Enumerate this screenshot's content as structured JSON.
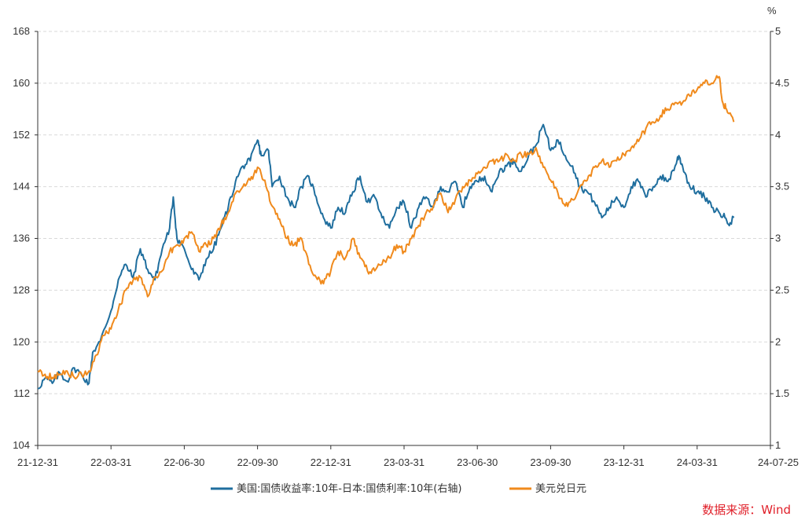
{
  "chart_data": {
    "type": "line",
    "unit_right": "%",
    "x_ticks": [
      "21-12-31",
      "22-03-31",
      "22-06-30",
      "22-09-30",
      "22-12-31",
      "23-03-31",
      "23-06-30",
      "23-09-30",
      "23-12-31",
      "24-03-31",
      "24-07-25"
    ],
    "y_left": {
      "min": 104,
      "max": 168,
      "ticks": [
        "104",
        "112",
        "120",
        "128",
        "136",
        "144",
        "152",
        "160",
        "168"
      ]
    },
    "y_right": {
      "min": 1,
      "max": 5,
      "ticks": [
        "1",
        "1.5",
        "2",
        "2.5",
        "3",
        "3.5",
        "4",
        "4.5",
        "5"
      ]
    },
    "series": [
      {
        "name": "美国:国债收益率:10年-日本:国债利率:10年(右轴)",
        "axis": "right",
        "color": "#1f6e9e",
        "values": [
          [
            0,
            1.55
          ],
          [
            0.1,
            1.65
          ],
          [
            0.2,
            1.6
          ],
          [
            0.3,
            1.7
          ],
          [
            0.4,
            1.62
          ],
          [
            0.5,
            1.75
          ],
          [
            0.6,
            1.68
          ],
          [
            0.7,
            1.6
          ],
          [
            0.75,
            1.9
          ],
          [
            0.85,
            2.0
          ],
          [
            1.0,
            2.3
          ],
          [
            1.1,
            2.6
          ],
          [
            1.2,
            2.75
          ],
          [
            1.3,
            2.62
          ],
          [
            1.4,
            2.9
          ],
          [
            1.5,
            2.7
          ],
          [
            1.6,
            2.6
          ],
          [
            1.7,
            2.9
          ],
          [
            1.8,
            3.1
          ],
          [
            1.85,
            3.4
          ],
          [
            1.9,
            3.0
          ],
          [
            2.0,
            2.9
          ],
          [
            2.1,
            2.7
          ],
          [
            2.2,
            2.6
          ],
          [
            2.3,
            2.8
          ],
          [
            2.4,
            2.9
          ],
          [
            2.5,
            3.1
          ],
          [
            2.6,
            3.3
          ],
          [
            2.7,
            3.55
          ],
          [
            2.8,
            3.7
          ],
          [
            2.9,
            3.75
          ],
          [
            3.0,
            3.95
          ],
          [
            3.05,
            3.8
          ],
          [
            3.15,
            3.85
          ],
          [
            3.2,
            3.5
          ],
          [
            3.3,
            3.6
          ],
          [
            3.4,
            3.4
          ],
          [
            3.5,
            3.3
          ],
          [
            3.6,
            3.5
          ],
          [
            3.7,
            3.6
          ],
          [
            3.8,
            3.4
          ],
          [
            3.9,
            3.2
          ],
          [
            4.0,
            3.1
          ],
          [
            4.1,
            3.3
          ],
          [
            4.2,
            3.25
          ],
          [
            4.3,
            3.45
          ],
          [
            4.4,
            3.6
          ],
          [
            4.5,
            3.35
          ],
          [
            4.6,
            3.4
          ],
          [
            4.7,
            3.2
          ],
          [
            4.8,
            3.1
          ],
          [
            4.9,
            3.3
          ],
          [
            5.0,
            3.35
          ],
          [
            5.1,
            3.1
          ],
          [
            5.2,
            3.3
          ],
          [
            5.3,
            3.4
          ],
          [
            5.4,
            3.3
          ],
          [
            5.5,
            3.5
          ],
          [
            5.6,
            3.45
          ],
          [
            5.7,
            3.55
          ],
          [
            5.8,
            3.3
          ],
          [
            5.9,
            3.5
          ],
          [
            6.0,
            3.55
          ],
          [
            6.1,
            3.6
          ],
          [
            6.2,
            3.45
          ],
          [
            6.3,
            3.65
          ],
          [
            6.4,
            3.7
          ],
          [
            6.5,
            3.75
          ],
          [
            6.6,
            3.65
          ],
          [
            6.7,
            3.8
          ],
          [
            6.8,
            3.9
          ],
          [
            6.9,
            4.1
          ],
          [
            7.0,
            3.85
          ],
          [
            7.1,
            3.95
          ],
          [
            7.2,
            3.8
          ],
          [
            7.3,
            3.7
          ],
          [
            7.4,
            3.5
          ],
          [
            7.5,
            3.45
          ],
          [
            7.6,
            3.35
          ],
          [
            7.7,
            3.2
          ],
          [
            7.8,
            3.3
          ],
          [
            7.9,
            3.4
          ],
          [
            8.0,
            3.3
          ],
          [
            8.1,
            3.5
          ],
          [
            8.2,
            3.55
          ],
          [
            8.3,
            3.4
          ],
          [
            8.4,
            3.5
          ],
          [
            8.5,
            3.6
          ],
          [
            8.6,
            3.55
          ],
          [
            8.7,
            3.7
          ],
          [
            8.75,
            3.8
          ],
          [
            8.8,
            3.7
          ],
          [
            8.9,
            3.5
          ],
          [
            9.0,
            3.45
          ],
          [
            9.1,
            3.4
          ],
          [
            9.2,
            3.3
          ],
          [
            9.3,
            3.25
          ],
          [
            9.38,
            3.2
          ],
          [
            9.45,
            3.15
          ],
          [
            9.5,
            3.2
          ]
        ]
      },
      {
        "name": "美元兑日元",
        "axis": "left",
        "color": "#f08a1c",
        "values": [
          [
            0,
            115.5
          ],
          [
            0.1,
            115
          ],
          [
            0.2,
            114.5
          ],
          [
            0.3,
            115
          ],
          [
            0.4,
            115.5
          ],
          [
            0.5,
            114.5
          ],
          [
            0.6,
            115
          ],
          [
            0.7,
            115.5
          ],
          [
            0.8,
            118
          ],
          [
            0.9,
            121
          ],
          [
            1.0,
            122
          ],
          [
            1.1,
            125
          ],
          [
            1.2,
            128
          ],
          [
            1.3,
            129.5
          ],
          [
            1.4,
            130
          ],
          [
            1.5,
            127
          ],
          [
            1.6,
            130
          ],
          [
            1.7,
            131
          ],
          [
            1.8,
            134
          ],
          [
            1.9,
            135
          ],
          [
            2.0,
            136
          ],
          [
            2.1,
            137
          ],
          [
            2.2,
            134
          ],
          [
            2.3,
            135
          ],
          [
            2.4,
            136
          ],
          [
            2.5,
            138
          ],
          [
            2.6,
            140
          ],
          [
            2.7,
            143
          ],
          [
            2.8,
            144
          ],
          [
            2.9,
            145
          ],
          [
            3.0,
            147
          ],
          [
            3.1,
            145
          ],
          [
            3.2,
            141
          ],
          [
            3.3,
            139
          ],
          [
            3.4,
            136
          ],
          [
            3.5,
            135
          ],
          [
            3.6,
            136
          ],
          [
            3.7,
            132
          ],
          [
            3.8,
            130
          ],
          [
            3.9,
            129
          ],
          [
            4.0,
            131
          ],
          [
            4.1,
            134
          ],
          [
            4.2,
            133
          ],
          [
            4.3,
            136
          ],
          [
            4.4,
            133
          ],
          [
            4.5,
            131
          ],
          [
            4.6,
            131
          ],
          [
            4.7,
            132
          ],
          [
            4.8,
            133
          ],
          [
            4.9,
            135
          ],
          [
            5.0,
            134
          ],
          [
            5.1,
            136
          ],
          [
            5.2,
            138
          ],
          [
            5.3,
            140
          ],
          [
            5.4,
            141
          ],
          [
            5.5,
            143
          ],
          [
            5.6,
            140
          ],
          [
            5.7,
            142
          ],
          [
            5.8,
            144
          ],
          [
            5.9,
            145
          ],
          [
            6.0,
            146
          ],
          [
            6.1,
            147
          ],
          [
            6.2,
            148
          ],
          [
            6.3,
            148
          ],
          [
            6.4,
            149
          ],
          [
            6.5,
            148
          ],
          [
            6.6,
            149
          ],
          [
            6.7,
            149
          ],
          [
            6.8,
            150
          ],
          [
            6.9,
            147
          ],
          [
            7.0,
            145
          ],
          [
            7.1,
            143
          ],
          [
            7.2,
            141
          ],
          [
            7.3,
            142
          ],
          [
            7.4,
            144
          ],
          [
            7.5,
            145
          ],
          [
            7.6,
            147
          ],
          [
            7.7,
            148
          ],
          [
            7.8,
            147
          ],
          [
            7.9,
            148
          ],
          [
            8.0,
            149
          ],
          [
            8.1,
            150
          ],
          [
            8.2,
            151
          ],
          [
            8.3,
            153
          ],
          [
            8.4,
            154
          ],
          [
            8.5,
            155
          ],
          [
            8.6,
            156
          ],
          [
            8.7,
            157
          ],
          [
            8.8,
            157
          ],
          [
            8.9,
            158
          ],
          [
            9.0,
            159
          ],
          [
            9.1,
            160
          ],
          [
            9.2,
            160
          ],
          [
            9.3,
            161
          ],
          [
            9.35,
            157
          ],
          [
            9.4,
            156
          ],
          [
            9.5,
            154
          ]
        ]
      }
    ]
  },
  "legend": [
    {
      "label": "美国:国债收益率:10年-日本:国债利率:10年(右轴)",
      "color": "#1f6e9e"
    },
    {
      "label": "美元兑日元",
      "color": "#f08a1c"
    }
  ],
  "source": "数据来源：Wind"
}
